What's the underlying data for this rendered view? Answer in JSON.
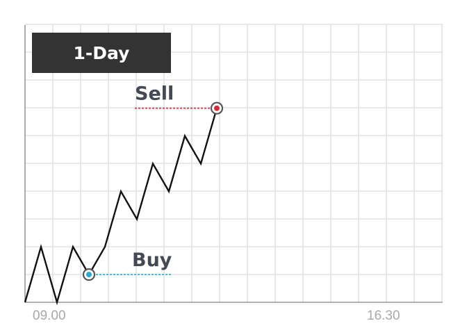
{
  "badge": {
    "label": "1-Day"
  },
  "colors": {
    "line": "#111111",
    "buy": "#29abd4",
    "sell": "#d42a3a",
    "marker_ring": "#555555",
    "badge_bg": "#333333"
  },
  "chart_data": {
    "type": "line",
    "title": "",
    "xlabel": "",
    "ylabel": "",
    "grid": true,
    "x_tick_labels": [
      "09.00",
      "16.30"
    ],
    "series": [
      {
        "values": [
          0,
          2,
          0,
          2,
          1,
          2,
          4,
          3,
          5,
          4,
          6,
          5,
          7
        ]
      }
    ],
    "ylim": [
      0,
      10
    ],
    "annotations": [
      {
        "label": "Buy",
        "point_index": 4,
        "color": "buy"
      },
      {
        "label": "Sell",
        "point_index": 12,
        "color": "sell"
      }
    ]
  }
}
